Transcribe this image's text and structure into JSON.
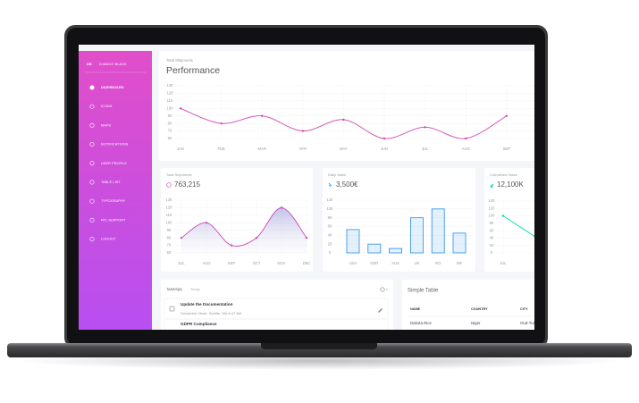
{
  "sidebar": {
    "logo_initials": "DB",
    "brand": "DJANGO BLACK",
    "items": [
      "DASHBOARD",
      "ICONS",
      "MAPS",
      "NOTIFICATIONS",
      "USER PROFILE",
      "TABLE LIST",
      "TYPOGRAPHY",
      "RTL SUPPORT",
      "LOGOUT"
    ]
  },
  "chart_data": [
    {
      "type": "line",
      "subtitle": "Total Shipments",
      "title": "Performance",
      "categories": [
        "JAN",
        "FEB",
        "MAR",
        "APR",
        "MAY",
        "JUN",
        "JUL",
        "AUG",
        "SEP"
      ],
      "values": [
        100,
        80,
        90,
        70,
        85,
        60,
        75,
        60,
        90
      ],
      "color": "#d048b6",
      "ylim": [
        60,
        130
      ],
      "yticks": [
        60,
        70,
        80,
        90,
        100,
        110,
        120,
        130
      ],
      "grid": true
    },
    {
      "type": "line",
      "subtitle": "Total Shipments",
      "title": "763,215",
      "categories": [
        "JUL",
        "AUG",
        "SEP",
        "OCT",
        "NOV",
        "DEC"
      ],
      "values": [
        80,
        100,
        70,
        80,
        120,
        80
      ],
      "color": "#d048b6",
      "area": true,
      "ylim": [
        60,
        130
      ],
      "yticks": [
        60,
        70,
        80,
        90,
        100,
        110,
        120,
        130
      ],
      "grid": true
    },
    {
      "type": "bar",
      "subtitle": "Daily Sales",
      "title": "3,500€",
      "categories": [
        "USA",
        "GER",
        "AUS",
        "UK",
        "RO",
        "BR"
      ],
      "values": [
        53,
        20,
        10,
        80,
        100,
        45
      ],
      "color": "#1f8ef1",
      "ylim": [
        0,
        120
      ],
      "yticks": [
        0,
        20,
        40,
        60,
        80,
        100,
        120
      ],
      "grid": true
    },
    {
      "type": "line",
      "subtitle": "Completed Tasks",
      "title": "12,100K",
      "categories": [
        "JUL",
        null
      ],
      "values": [
        100,
        45
      ],
      "color": "#00d6b4",
      "ylim": [
        0,
        140
      ],
      "yticks": [
        0,
        20,
        40,
        60,
        80,
        100,
        120,
        140
      ],
      "grid": true
    }
  ],
  "tasks": {
    "tabs": [
      "TASKS(5)",
      "Today"
    ],
    "items": [
      {
        "title": "Update the Documentation",
        "detail": "Dwuamish Head, Seattle, WA 8:47 AM"
      },
      {
        "title": "GDPR Compliance"
      }
    ]
  },
  "table": {
    "title": "Simple Table",
    "headers": [
      "NAME",
      "COUNTRY",
      "CITY"
    ],
    "rows": [
      [
        "Dakota Rice",
        "Niger",
        "Oud-Turnhout"
      ]
    ]
  }
}
